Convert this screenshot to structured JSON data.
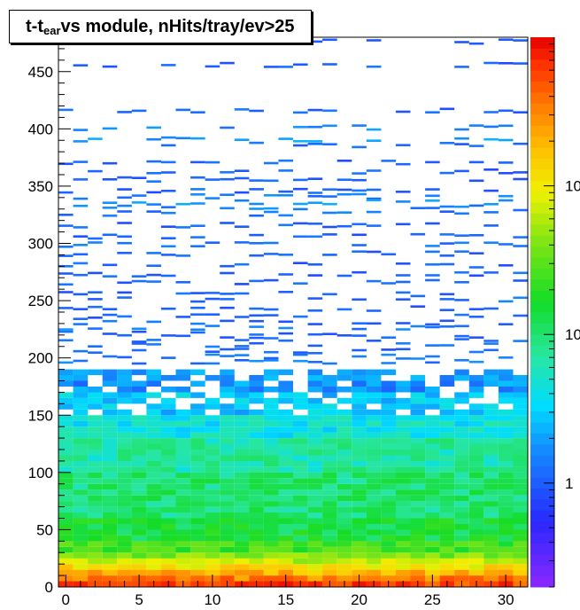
{
  "chart_data": {
    "type": "heatmap",
    "title_prefix": "t-t",
    "title_subscript": "ear",
    "title_suffix": " vs module, nHits/tray/ev>25",
    "xlim": [
      -0.5,
      31.5
    ],
    "ylim": [
      0,
      480
    ],
    "x_ticks": [
      "0",
      "5",
      "10",
      "15",
      "20",
      "25",
      "30"
    ],
    "y_ticks": [
      "0",
      "50",
      "100",
      "150",
      "200",
      "250",
      "300",
      "350",
      "400",
      "450"
    ],
    "colorbar_labels": [
      "1",
      "10",
      "10"
    ],
    "z_scale": "log",
    "z_range": [
      0.2,
      1000
    ],
    "bin_width_y": 5,
    "density_profile": [
      {
        "y_max": 5,
        "value": 600
      },
      {
        "y_max": 10,
        "value": 350
      },
      {
        "y_max": 15,
        "value": 200
      },
      {
        "y_max": 20,
        "value": 120
      },
      {
        "y_max": 25,
        "value": 70
      },
      {
        "y_max": 30,
        "value": 40
      },
      {
        "y_max": 40,
        "value": 25
      },
      {
        "y_max": 60,
        "value": 15
      },
      {
        "y_max": 100,
        "value": 10
      },
      {
        "y_max": 130,
        "value": 7
      },
      {
        "y_max": 150,
        "value": 4.5
      },
      {
        "y_max": 170,
        "value": 3
      },
      {
        "y_max": 190,
        "value": 1.8
      },
      {
        "y_max": 230,
        "value": 1.1
      },
      {
        "y_max": 480,
        "value": 1
      }
    ],
    "sparse_bands": [
      {
        "y": 475,
        "value": 1
      },
      {
        "y": 455,
        "value": 1
      },
      {
        "y": 415,
        "value": 1
      },
      {
        "y": 400,
        "value": 1.5
      },
      {
        "y": 390,
        "value": 1.8
      },
      {
        "y": 385,
        "value": 1
      },
      {
        "y": 370,
        "value": 1
      },
      {
        "y": 362,
        "value": 1
      },
      {
        "y": 355,
        "value": 1
      },
      {
        "y": 345,
        "value": 1
      },
      {
        "y": 340,
        "value": 1.3
      },
      {
        "y": 335,
        "value": 1.6
      },
      {
        "y": 330,
        "value": 1.4
      },
      {
        "y": 325,
        "value": 1.2
      },
      {
        "y": 315,
        "value": 1
      },
      {
        "y": 305,
        "value": 1
      },
      {
        "y": 298,
        "value": 1.2
      },
      {
        "y": 290,
        "value": 1
      },
      {
        "y": 280,
        "value": 1
      },
      {
        "y": 272,
        "value": 1
      },
      {
        "y": 265,
        "value": 1
      },
      {
        "y": 255,
        "value": 1
      },
      {
        "y": 250,
        "value": 1.2
      },
      {
        "y": 242,
        "value": 1
      },
      {
        "y": 235,
        "value": 1
      },
      {
        "y": 230,
        "value": 1.1
      },
      {
        "y": 225,
        "value": 1.3
      },
      {
        "y": 220,
        "value": 1
      },
      {
        "y": 215,
        "value": 1
      },
      {
        "y": 210,
        "value": 1.1
      },
      {
        "y": 205,
        "value": 1
      },
      {
        "y": 200,
        "value": 1.2
      },
      {
        "y": 195,
        "value": 1.3
      }
    ]
  }
}
